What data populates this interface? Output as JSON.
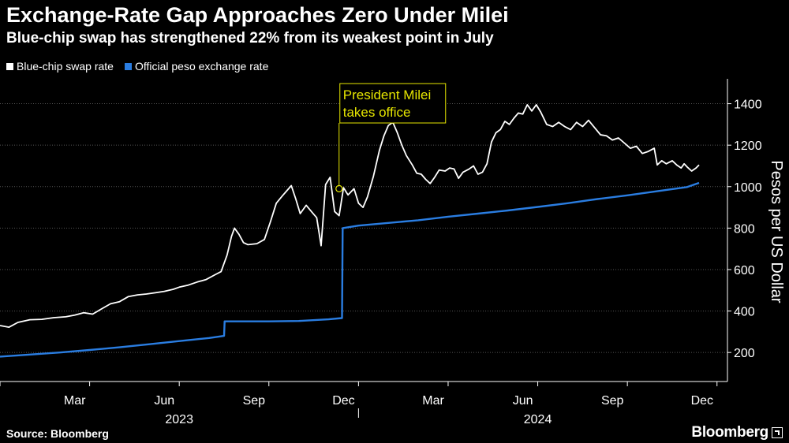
{
  "header": {
    "title": "Exchange-Rate Gap Approaches Zero Under Milei",
    "subtitle": "Blue-chip swap has strengthened 22% from its weakest point in July"
  },
  "footer": {
    "source": "Source: Bloomberg",
    "brand": "Bloomberg"
  },
  "colors": {
    "background": "#000000",
    "blue_chip": "#ffffff",
    "official": "#2a7de1",
    "annotation": "#e6e600",
    "grid": "#555555"
  },
  "chart_data": {
    "type": "line",
    "title": "Exchange-Rate Gap Approaches Zero Under Milei",
    "subtitle": "Blue-chip swap has strengthened 22% from its weakest point in July",
    "xlabel": "",
    "ylabel": "Pesos per US Dollar",
    "ylim": [
      60,
      1520
    ],
    "yticks": [
      200,
      400,
      600,
      800,
      1000,
      1200,
      1400
    ],
    "grid": true,
    "legend_position": "top-left",
    "x_unit": "month index (0 = 1 Jan 2023)",
    "xlim": [
      0,
      24.35
    ],
    "x_ticks": [
      {
        "label": "Mar",
        "x": 2.5
      },
      {
        "label": "Jun",
        "x": 5.5
      },
      {
        "label": "Sep",
        "x": 8.5
      },
      {
        "label": "Dec",
        "x": 11.5
      },
      {
        "label": "Mar",
        "x": 14.5
      },
      {
        "label": "Jun",
        "x": 17.5
      },
      {
        "label": "Sep",
        "x": 20.5
      },
      {
        "label": "Dec",
        "x": 23.5
      }
    ],
    "x_tick_marks": [
      0,
      3,
      6,
      9,
      12,
      15,
      18,
      21,
      24
    ],
    "year_labels": [
      {
        "label": "2023",
        "x": 6.0
      },
      {
        "label": "2024",
        "x": 18.0
      }
    ],
    "year_divider": 12.0,
    "series": [
      {
        "name": "Blue-chip swap rate",
        "color": "#ffffff",
        "points": [
          [
            0,
            330
          ],
          [
            0.3,
            322
          ],
          [
            0.6,
            345
          ],
          [
            1.0,
            358
          ],
          [
            1.4,
            360
          ],
          [
            1.8,
            368
          ],
          [
            2.2,
            372
          ],
          [
            2.5,
            380
          ],
          [
            2.8,
            392
          ],
          [
            3.1,
            385
          ],
          [
            3.4,
            410
          ],
          [
            3.7,
            435
          ],
          [
            4.0,
            445
          ],
          [
            4.3,
            470
          ],
          [
            4.6,
            478
          ],
          [
            4.9,
            482
          ],
          [
            5.2,
            488
          ],
          [
            5.5,
            495
          ],
          [
            5.8,
            505
          ],
          [
            6.0,
            515
          ],
          [
            6.3,
            525
          ],
          [
            6.6,
            540
          ],
          [
            6.9,
            552
          ],
          [
            7.2,
            575
          ],
          [
            7.4,
            590
          ],
          [
            7.6,
            670
          ],
          [
            7.75,
            760
          ],
          [
            7.85,
            800
          ],
          [
            8.0,
            770
          ],
          [
            8.15,
            730
          ],
          [
            8.3,
            720
          ],
          [
            8.6,
            725
          ],
          [
            8.85,
            745
          ],
          [
            9.05,
            830
          ],
          [
            9.25,
            920
          ],
          [
            9.45,
            955
          ],
          [
            9.6,
            980
          ],
          [
            9.75,
            1005
          ],
          [
            9.9,
            940
          ],
          [
            10.05,
            870
          ],
          [
            10.25,
            910
          ],
          [
            10.45,
            875
          ],
          [
            10.6,
            850
          ],
          [
            10.75,
            715
          ],
          [
            10.9,
            1010
          ],
          [
            11.05,
            1045
          ],
          [
            11.2,
            880
          ],
          [
            11.35,
            860
          ],
          [
            11.5,
            995
          ],
          [
            11.65,
            960
          ],
          [
            11.85,
            990
          ],
          [
            12.0,
            920
          ],
          [
            12.15,
            900
          ],
          [
            12.3,
            950
          ],
          [
            12.5,
            1050
          ],
          [
            12.7,
            1175
          ],
          [
            12.85,
            1245
          ],
          [
            13.0,
            1295
          ],
          [
            13.15,
            1310
          ],
          [
            13.3,
            1260
          ],
          [
            13.45,
            1200
          ],
          [
            13.6,
            1150
          ],
          [
            13.8,
            1105
          ],
          [
            13.95,
            1065
          ],
          [
            14.1,
            1060
          ],
          [
            14.25,
            1035
          ],
          [
            14.4,
            1015
          ],
          [
            14.55,
            1045
          ],
          [
            14.7,
            1080
          ],
          [
            14.9,
            1075
          ],
          [
            15.05,
            1090
          ],
          [
            15.2,
            1085
          ],
          [
            15.35,
            1040
          ],
          [
            15.5,
            1070
          ],
          [
            15.7,
            1085
          ],
          [
            15.85,
            1100
          ],
          [
            16.0,
            1060
          ],
          [
            16.15,
            1070
          ],
          [
            16.3,
            1110
          ],
          [
            16.45,
            1215
          ],
          [
            16.6,
            1260
          ],
          [
            16.75,
            1275
          ],
          [
            16.9,
            1315
          ],
          [
            17.05,
            1300
          ],
          [
            17.2,
            1330
          ],
          [
            17.35,
            1355
          ],
          [
            17.5,
            1350
          ],
          [
            17.65,
            1395
          ],
          [
            17.8,
            1365
          ],
          [
            17.95,
            1395
          ],
          [
            18.1,
            1360
          ],
          [
            18.3,
            1300
          ],
          [
            18.5,
            1290
          ],
          [
            18.7,
            1310
          ],
          [
            18.9,
            1290
          ],
          [
            19.1,
            1275
          ],
          [
            19.3,
            1310
          ],
          [
            19.5,
            1290
          ],
          [
            19.7,
            1320
          ],
          [
            19.9,
            1285
          ],
          [
            20.1,
            1250
          ],
          [
            20.3,
            1245
          ],
          [
            20.5,
            1225
          ],
          [
            20.7,
            1235
          ],
          [
            20.9,
            1210
          ],
          [
            21.1,
            1185
          ],
          [
            21.3,
            1195
          ],
          [
            21.5,
            1160
          ],
          [
            21.7,
            1170
          ],
          [
            21.9,
            1185
          ],
          [
            22.0,
            1105
          ],
          [
            22.15,
            1125
          ],
          [
            22.3,
            1110
          ],
          [
            22.5,
            1125
          ],
          [
            22.65,
            1105
          ],
          [
            22.8,
            1090
          ],
          [
            22.9,
            1110
          ],
          [
            23.0,
            1095
          ],
          [
            23.15,
            1075
          ],
          [
            23.3,
            1090
          ],
          [
            23.4,
            1105
          ]
        ]
      },
      {
        "name": "Official peso exchange rate",
        "color": "#2a7de1",
        "points": [
          [
            0,
            180
          ],
          [
            1,
            190
          ],
          [
            2,
            200
          ],
          [
            3,
            212
          ],
          [
            4,
            225
          ],
          [
            5,
            240
          ],
          [
            6,
            255
          ],
          [
            7.0,
            270
          ],
          [
            7.5,
            280
          ],
          [
            7.52,
            350
          ],
          [
            8,
            350
          ],
          [
            9,
            350
          ],
          [
            10,
            352
          ],
          [
            11.0,
            360
          ],
          [
            11.45,
            366
          ],
          [
            11.47,
            800
          ],
          [
            12,
            812
          ],
          [
            13,
            825
          ],
          [
            14,
            838
          ],
          [
            15,
            855
          ],
          [
            16,
            870
          ],
          [
            17,
            885
          ],
          [
            18,
            902
          ],
          [
            19,
            920
          ],
          [
            20,
            940
          ],
          [
            21,
            958
          ],
          [
            22,
            978
          ],
          [
            23,
            998
          ],
          [
            23.4,
            1018
          ]
        ]
      }
    ],
    "annotations": [
      {
        "text_lines": [
          "President Milei",
          "takes office"
        ],
        "x": 11.35,
        "y": 990,
        "color": "#e6e600"
      }
    ]
  },
  "legend": {
    "items": [
      {
        "label": "Blue-chip swap rate",
        "color": "#ffffff"
      },
      {
        "label": "Official peso exchange rate",
        "color": "#2a7de1"
      }
    ]
  }
}
